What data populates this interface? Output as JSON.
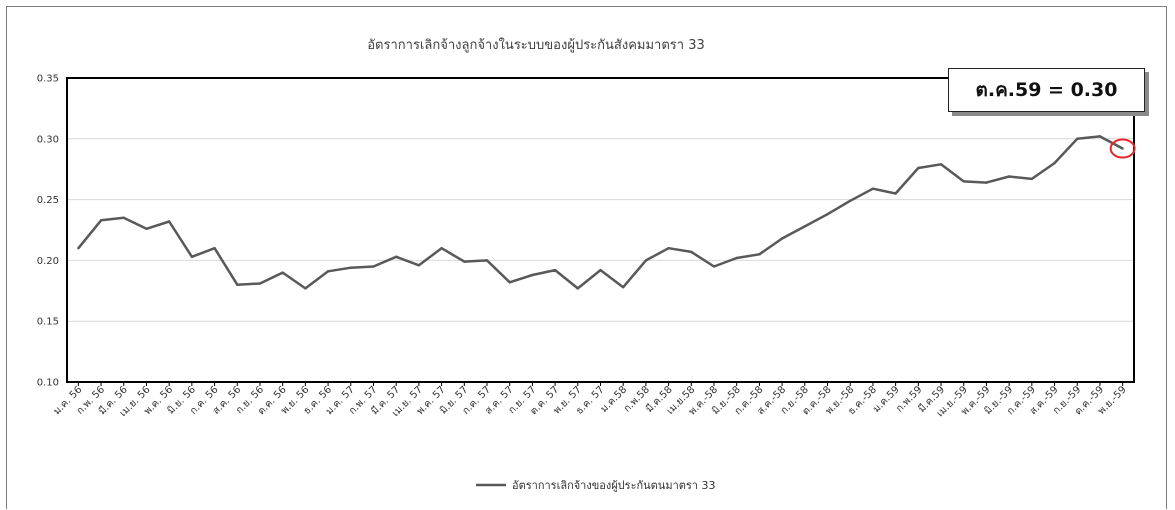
{
  "callout": {
    "text": "ต.ค.59 = 0.30"
  },
  "chart_data": {
    "type": "line",
    "title": "อัตราการเลิกจ้างลูกจ้างในระบบของผู้ประกันสังคมมาตรา 33",
    "xlabel": "",
    "ylabel": "",
    "ylim": [
      0.1,
      0.35
    ],
    "yticks": [
      "0.10",
      "0.15",
      "0.20",
      "0.25",
      "0.30",
      "0.35"
    ],
    "grid": true,
    "legend_position": "bottom",
    "categories": [
      "ม.ค. 56",
      "ก.พ. 56",
      "มี.ค. 56",
      "เม.ย. 56",
      "พ.ค. 56",
      "มิ.ย. 56",
      "ก.ค. 56",
      "ส.ค. 56",
      "ก.ย. 56",
      "ต.ค. 56",
      "พ.ย. 56",
      "ธ.ค. 56",
      "ม.ค. 57",
      "ก.พ. 57",
      "มี.ค. 57",
      "เม.ย. 57",
      "พ.ค. 57",
      "มิ.ย. 57",
      "ก.ค. 57",
      "ส.ค. 57",
      "ก.ย. 57",
      "ต.ค. 57",
      "พ.ย. 57",
      "ธ.ค. 57",
      "ม.ค.58",
      "ก.พ.58",
      "มี.ค.58",
      "เม.ย.58",
      "พ.ค.-58",
      "มิ.ย.-58",
      "ก.ค.-58",
      "ส.ค.-58",
      "ก.ย.-58",
      "ต.ค.-58",
      "พ.ย.-58",
      "ธ.ค.-58",
      "ม.ค.59",
      "ก.พ.59",
      "มี.ค.59",
      "เม.ย.-59",
      "พ.ค.-59",
      "มิ.ย.-59",
      "ก.ค.-59",
      "ส.ค.-59",
      "ก.ย.-59",
      "ต.ค.-59",
      "พ.ย.-59"
    ],
    "series": [
      {
        "name": "อัตราการเลิกจ้างของผู้ประกันตนมาตรา 33",
        "color": "#595959",
        "values": [
          0.21,
          0.233,
          0.235,
          0.226,
          0.232,
          0.203,
          0.21,
          0.18,
          0.181,
          0.19,
          0.177,
          0.191,
          0.194,
          0.195,
          0.203,
          0.196,
          0.21,
          0.199,
          0.2,
          0.182,
          0.188,
          0.192,
          0.177,
          0.192,
          0.178,
          0.2,
          0.21,
          0.207,
          0.195,
          0.202,
          0.205,
          0.218,
          0.228,
          0.238,
          0.249,
          0.259,
          0.255,
          0.276,
          0.279,
          0.265,
          0.264,
          0.269,
          0.267,
          0.28,
          0.3,
          0.302,
          0.292
        ]
      }
    ],
    "highlight": {
      "category": "พ.ย.-59",
      "marker": "circle",
      "color": "#e8262a"
    }
  }
}
